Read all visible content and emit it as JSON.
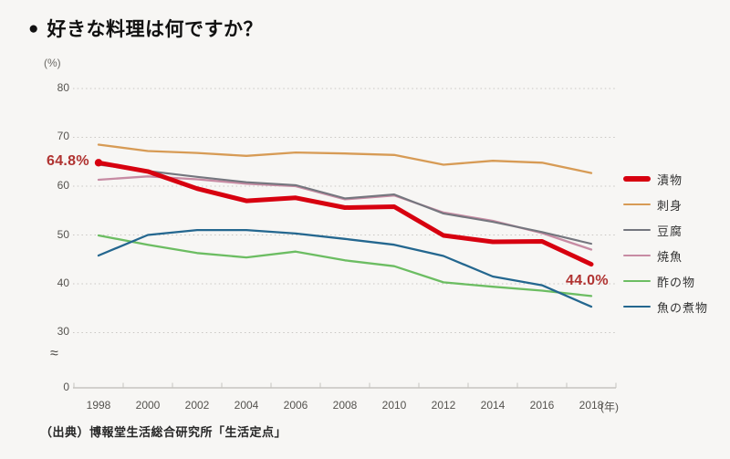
{
  "title": {
    "bullet_icon": "●",
    "text": "好きな料理は何ですか？"
  },
  "y_axis": {
    "unit": "(%)",
    "ticks": [
      "80",
      "70",
      "60",
      "50",
      "40",
      "30"
    ],
    "tick_values": [
      80,
      70,
      60,
      50,
      40,
      30
    ],
    "zero_label": "0",
    "break_symbol": "≈"
  },
  "x_axis": {
    "unit": "(年)",
    "labels": [
      "1998",
      "2000",
      "2002",
      "2004",
      "2006",
      "2008",
      "2010",
      "2012",
      "2014",
      "2016",
      "2018"
    ]
  },
  "annotations": {
    "start_value": "64.8%",
    "end_value": "44.0%"
  },
  "source": "（出典）博報堂生活総合研究所「生活定点」",
  "colors": {
    "background": "#f7f6f4",
    "grid": "#c9c7c3",
    "axis": "#c6c4c0",
    "annotation": "#b03331",
    "legend_text": "#333333"
  },
  "chart_data": {
    "type": "line",
    "title": "好きな料理は何ですか？",
    "x": [
      1998,
      2000,
      2002,
      2004,
      2006,
      2008,
      2010,
      2012,
      2014,
      2016,
      2018
    ],
    "x_labels": [
      "1998",
      "2000",
      "2002",
      "2004",
      "2006",
      "2008",
      "2010",
      "2012",
      "2014",
      "2016",
      "2018"
    ],
    "xlabel": "(年)",
    "ylabel": "(%)",
    "ylim": [
      0,
      80
    ],
    "display_range": [
      30,
      80
    ],
    "axis_break_above_zero": true,
    "grid": "horizontal-dotted",
    "legend_position": "right",
    "series": [
      {
        "name": "漬物",
        "key": "tsukemono",
        "color": "#d7000f",
        "width": 5,
        "z": 6,
        "start_dot": true,
        "values": [
          64.8,
          63.0,
          59.5,
          57.0,
          57.6,
          55.6,
          55.8,
          49.9,
          48.6,
          48.7,
          44.0
        ]
      },
      {
        "name": "刺身",
        "key": "sashimi",
        "color": "#d79b55",
        "width": 2.3,
        "z": 5,
        "values": [
          68.5,
          67.2,
          66.8,
          66.2,
          66.9,
          66.7,
          66.4,
          64.4,
          65.2,
          64.8,
          62.7
        ]
      },
      {
        "name": "豆腐",
        "key": "tofu",
        "color": "#74767e",
        "width": 2.1,
        "z": 4,
        "values": [
          64.4,
          63.1,
          61.9,
          60.8,
          60.2,
          57.5,
          58.3,
          54.4,
          52.7,
          50.6,
          48.2
        ]
      },
      {
        "name": "焼魚",
        "key": "yakizakana",
        "color": "#c78ba3",
        "width": 2.3,
        "z": 3,
        "values": [
          61.3,
          62.0,
          61.4,
          60.5,
          60.0,
          57.3,
          58.1,
          54.6,
          52.9,
          50.4,
          47.0
        ]
      },
      {
        "name": "酢の物",
        "key": "sunomono",
        "color": "#6cbd62",
        "width": 2.3,
        "z": 1,
        "values": [
          49.9,
          48.0,
          46.3,
          45.4,
          46.6,
          44.8,
          43.6,
          40.3,
          39.4,
          38.6,
          37.5
        ]
      },
      {
        "name": "魚の煮物",
        "key": "sakana-no-nimono",
        "color": "#24678f",
        "width": 2.3,
        "z": 2,
        "values": [
          45.8,
          50.0,
          51.0,
          51.0,
          50.3,
          49.2,
          48.0,
          45.7,
          41.5,
          39.7,
          35.3
        ]
      }
    ]
  }
}
